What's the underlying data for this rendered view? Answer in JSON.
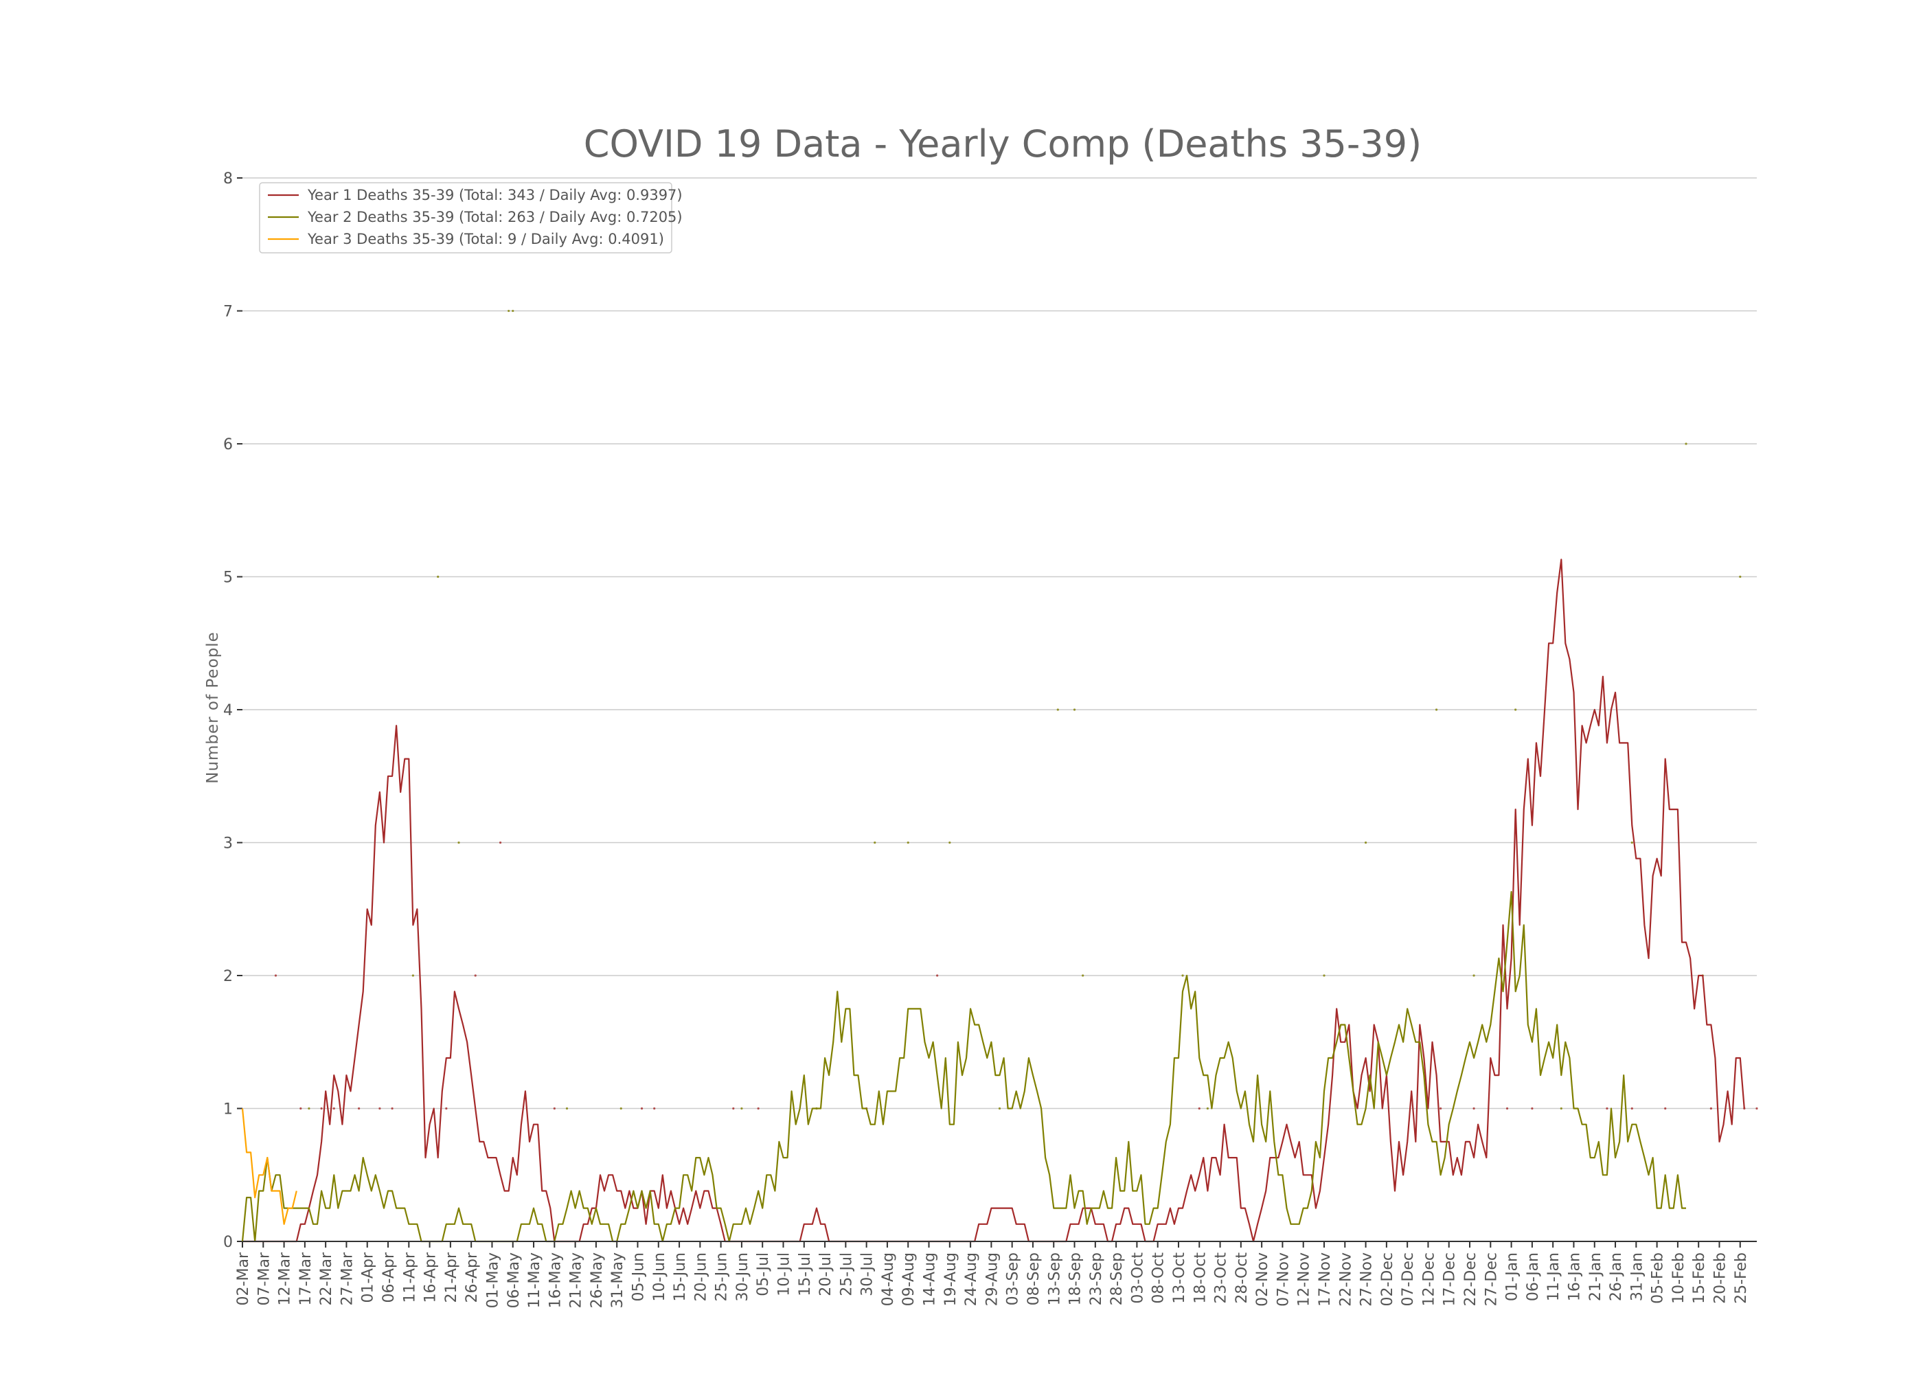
{
  "chart_data": {
    "type": "line",
    "title": "COVID 19 Data - Yearly Comp (Deaths 35-39)",
    "xlabel": "",
    "ylabel": "Number of People",
    "ylim": [
      0,
      8.3
    ],
    "yticks": [
      0,
      1,
      2,
      3,
      4,
      5,
      6,
      7,
      8
    ],
    "grid": true,
    "legend_position": "top-left",
    "xtick_labels": [
      "02-Mar",
      "07-Mar",
      "12-Mar",
      "17-Mar",
      "22-Mar",
      "27-Mar",
      "01-Apr",
      "06-Apr",
      "11-Apr",
      "16-Apr",
      "21-Apr",
      "26-Apr",
      "01-May",
      "06-May",
      "11-May",
      "16-May",
      "21-May",
      "26-May",
      "31-May",
      "05-Jun",
      "10-Jun",
      "15-Jun",
      "20-Jun",
      "25-Jun",
      "30-Jun",
      "05-Jul",
      "10-Jul",
      "15-Jul",
      "20-Jul",
      "25-Jul",
      "30-Jul",
      "04-Aug",
      "09-Aug",
      "14-Aug",
      "19-Aug",
      "24-Aug",
      "29-Aug",
      "03-Sep",
      "08-Sep",
      "13-Sep",
      "18-Sep",
      "23-Sep",
      "28-Sep",
      "03-Oct",
      "08-Oct",
      "13-Oct",
      "18-Oct",
      "23-Oct",
      "28-Oct",
      "02-Nov",
      "07-Nov",
      "12-Nov",
      "17-Nov",
      "22-Nov",
      "27-Nov",
      "02-Dec",
      "07-Dec",
      "12-Dec",
      "17-Dec",
      "22-Dec",
      "27-Dec",
      "01-Jan",
      "06-Jan",
      "11-Jan",
      "16-Jan",
      "21-Jan",
      "26-Jan",
      "31-Jan",
      "05-Feb",
      "10-Feb",
      "15-Feb",
      "20-Feb",
      "25-Feb"
    ],
    "series": [
      {
        "name": "Year 1 Deaths 35-39 (Total: 343 / Daily Avg: 0.9397)",
        "color": "#a52a2a",
        "start_day": 0,
        "values": [
          0,
          0,
          0,
          0,
          0,
          0,
          0,
          0,
          0,
          0,
          0,
          0,
          0,
          0,
          0.13,
          0.13,
          0.25,
          0.38,
          0.5,
          0.75,
          1.13,
          0.88,
          1.25,
          1.13,
          0.88,
          1.25,
          1.13,
          1.38,
          1.63,
          1.88,
          2.5,
          2.38,
          3.13,
          3.38,
          3.0,
          3.5,
          3.5,
          3.88,
          3.38,
          3.63,
          3.63,
          2.38,
          2.5,
          1.75,
          0.63,
          0.88,
          1.0,
          0.63,
          1.13,
          1.38,
          1.38,
          1.88,
          1.75,
          1.63,
          1.5,
          1.25,
          1.0,
          0.75,
          0.75,
          0.63,
          0.63,
          0.63,
          0.5,
          0.38,
          0.38,
          0.63,
          0.5,
          0.88,
          1.13,
          0.75,
          0.88,
          0.88,
          0.38,
          0.38,
          0.25,
          0,
          0,
          0,
          0,
          0,
          0,
          0,
          0.13,
          0.13,
          0.25,
          0.25,
          0.5,
          0.38,
          0.5,
          0.5,
          0.38,
          0.38,
          0.25,
          0.38,
          0.25,
          0.25,
          0.38,
          0.13,
          0.38,
          0.38,
          0.25,
          0.5,
          0.25,
          0.38,
          0.25,
          0.13,
          0.25,
          0.13,
          0.25,
          0.38,
          0.25,
          0.38,
          0.38,
          0.25,
          0.25,
          0.13,
          0,
          0,
          0,
          0,
          0,
          0,
          0,
          0,
          0,
          0,
          0,
          0,
          0,
          0,
          0,
          0,
          0,
          0,
          0,
          0.13,
          0.13,
          0.13,
          0.25,
          0.13,
          0.13,
          0,
          0,
          0,
          0,
          0,
          0,
          0,
          0,
          0,
          0,
          0,
          0,
          0,
          0,
          0,
          0,
          0,
          0,
          0,
          0,
          0,
          0,
          0,
          0,
          0,
          0,
          0,
          0,
          0,
          0,
          0,
          0,
          0,
          0,
          0,
          0,
          0.13,
          0.13,
          0.13,
          0.25,
          0.25,
          0.25,
          0.25,
          0.25,
          0.25,
          0.13,
          0.13,
          0.13,
          0,
          0,
          0,
          0,
          0,
          0,
          0,
          0,
          0,
          0,
          0.13,
          0.13,
          0.13,
          0.25,
          0.25,
          0.25,
          0.13,
          0.13,
          0.13,
          0,
          0,
          0.13,
          0.13,
          0.25,
          0.25,
          0.13,
          0.13,
          0.13,
          0,
          0,
          0,
          0.13,
          0.13,
          0.13,
          0.25,
          0.13,
          0.25,
          0.25,
          0.38,
          0.5,
          0.38,
          0.5,
          0.63,
          0.38,
          0.63,
          0.63,
          0.5,
          0.88,
          0.63,
          0.63,
          0.63,
          0.25,
          0.25,
          0.13,
          0,
          0.13,
          0.25,
          0.38,
          0.63,
          0.63,
          0.63,
          0.75,
          0.88,
          0.75,
          0.63,
          0.75,
          0.5,
          0.5,
          0.5,
          0.25,
          0.38,
          0.63,
          0.88,
          1.25,
          1.75,
          1.5,
          1.5,
          1.63,
          1.13,
          1.0,
          1.25,
          1.38,
          1.13,
          1.63,
          1.5,
          1.0,
          1.25,
          0.75,
          0.38,
          0.75,
          0.5,
          0.75,
          1.13,
          0.75,
          1.63,
          1.38,
          1.0,
          1.5,
          1.25,
          0.75,
          0.75,
          0.75,
          0.5,
          0.63,
          0.5,
          0.75,
          0.75,
          0.63,
          0.88,
          0.75,
          0.63,
          1.38,
          1.25,
          1.25,
          2.38,
          1.75,
          2.13,
          3.25,
          2.38,
          3.25,
          3.63,
          3.13,
          3.75,
          3.5,
          4.0,
          4.5,
          4.5,
          4.88,
          5.13,
          4.5,
          4.38,
          4.13,
          3.25,
          3.88,
          3.75,
          3.88,
          4.0,
          3.88,
          4.25,
          3.75,
          4.0,
          4.13,
          3.75,
          3.75,
          3.75,
          3.13,
          2.88,
          2.88,
          2.38,
          2.13,
          2.75,
          2.88,
          2.75,
          3.63,
          3.25,
          3.25,
          3.25,
          2.25,
          2.25,
          2.13,
          1.75,
          2.0,
          2.0,
          1.63,
          1.63,
          1.38,
          0.75,
          0.88,
          1.13,
          0.88,
          1.38,
          1.38,
          1.0
        ]
      },
      {
        "name": "Year 2 Deaths 35-39 (Total: 263 / Daily Avg: 0.7205)",
        "color": "#808000",
        "start_day": 0,
        "values": [
          0,
          0.33,
          0.33,
          0,
          0.38,
          0.38,
          0.63,
          0.38,
          0.5,
          0.5,
          0.25,
          0.25,
          0.25,
          0.25,
          0.25,
          0.25,
          0.25,
          0.13,
          0.13,
          0.38,
          0.25,
          0.25,
          0.5,
          0.25,
          0.38,
          0.38,
          0.38,
          0.5,
          0.38,
          0.63,
          0.5,
          0.38,
          0.5,
          0.38,
          0.25,
          0.38,
          0.38,
          0.25,
          0.25,
          0.25,
          0.13,
          0.13,
          0.13,
          0,
          0,
          0,
          0,
          0,
          0,
          0.13,
          0.13,
          0.13,
          0.25,
          0.13,
          0.13,
          0.13,
          0,
          0,
          0,
          0,
          0,
          0,
          0,
          0,
          0,
          0,
          0,
          0.13,
          0.13,
          0.13,
          0.25,
          0.13,
          0.13,
          0,
          0,
          0,
          0.13,
          0.13,
          0.25,
          0.38,
          0.25,
          0.38,
          0.25,
          0.25,
          0.13,
          0.25,
          0.13,
          0.13,
          0.13,
          0,
          0,
          0.13,
          0.13,
          0.25,
          0.38,
          0.25,
          0.38,
          0.25,
          0.38,
          0.13,
          0.13,
          0,
          0.13,
          0.13,
          0.25,
          0.25,
          0.5,
          0.5,
          0.38,
          0.63,
          0.63,
          0.5,
          0.63,
          0.5,
          0.25,
          0.25,
          0.13,
          0,
          0.13,
          0.13,
          0.13,
          0.25,
          0.13,
          0.25,
          0.38,
          0.25,
          0.5,
          0.5,
          0.38,
          0.75,
          0.63,
          0.63,
          1.13,
          0.88,
          1.0,
          1.25,
          0.88,
          1.0,
          1.0,
          1.0,
          1.38,
          1.25,
          1.5,
          1.88,
          1.5,
          1.75,
          1.75,
          1.25,
          1.25,
          1.0,
          1.0,
          0.88,
          0.88,
          1.13,
          0.88,
          1.13,
          1.13,
          1.13,
          1.38,
          1.38,
          1.75,
          1.75,
          1.75,
          1.75,
          1.5,
          1.38,
          1.5,
          1.25,
          1.0,
          1.38,
          0.88,
          0.88,
          1.5,
          1.25,
          1.38,
          1.75,
          1.63,
          1.63,
          1.5,
          1.38,
          1.5,
          1.25,
          1.25,
          1.38,
          1.0,
          1.0,
          1.13,
          1.0,
          1.13,
          1.38,
          1.25,
          1.13,
          1.0,
          0.63,
          0.5,
          0.25,
          0.25,
          0.25,
          0.25,
          0.5,
          0.25,
          0.38,
          0.38,
          0.13,
          0.25,
          0.25,
          0.25,
          0.38,
          0.25,
          0.25,
          0.63,
          0.38,
          0.38,
          0.75,
          0.38,
          0.38,
          0.5,
          0.13,
          0.13,
          0.25,
          0.25,
          0.5,
          0.75,
          0.88,
          1.38,
          1.38,
          1.88,
          2.0,
          1.75,
          1.88,
          1.38,
          1.25,
          1.25,
          1.0,
          1.25,
          1.38,
          1.38,
          1.5,
          1.38,
          1.13,
          1.0,
          1.13,
          0.88,
          0.75,
          1.25,
          0.88,
          0.75,
          1.13,
          0.75,
          0.5,
          0.5,
          0.25,
          0.13,
          0.13,
          0.13,
          0.25,
          0.25,
          0.38,
          0.75,
          0.63,
          1.13,
          1.38,
          1.38,
          1.5,
          1.63,
          1.63,
          1.38,
          1.13,
          0.88,
          0.88,
          1.0,
          1.25,
          1.0,
          1.5,
          1.38,
          1.25,
          1.38,
          1.5,
          1.63,
          1.5,
          1.75,
          1.63,
          1.5,
          1.5,
          1.25,
          0.88,
          0.75,
          0.75,
          0.5,
          0.63,
          0.88,
          1.0,
          1.13,
          1.25,
          1.38,
          1.5,
          1.38,
          1.5,
          1.63,
          1.5,
          1.63,
          1.88,
          2.13,
          1.88,
          2.25,
          2.63,
          1.88,
          2.0,
          2.38,
          1.63,
          1.5,
          1.75,
          1.25,
          1.38,
          1.5,
          1.38,
          1.63,
          1.25,
          1.5,
          1.38,
          1.0,
          1.0,
          0.88,
          0.88,
          0.63,
          0.63,
          0.75,
          0.5,
          0.5,
          1.0,
          0.63,
          0.75,
          1.25,
          0.75,
          0.88,
          0.88,
          0.75,
          0.63,
          0.5,
          0.63,
          0.25,
          0.25,
          0.5,
          0.25,
          0.25,
          0.5,
          0.25,
          0.25
        ]
      },
      {
        "name": "Year 3 Deaths 35-39 (Total: 9 / Daily Avg: 0.4091)",
        "color": "#ffa500",
        "start_day": 0,
        "values": [
          1.0,
          0.67,
          0.67,
          0.33,
          0.5,
          0.5,
          0.63,
          0.38,
          0.38,
          0.38,
          0.13,
          0.25,
          0.25,
          0.38
        ]
      }
    ],
    "markers": [
      {
        "series": 0,
        "points": [
          [
            8,
            2
          ],
          [
            14,
            1
          ],
          [
            19,
            1
          ],
          [
            22,
            1
          ],
          [
            28,
            1
          ],
          [
            33,
            1
          ],
          [
            36,
            1
          ],
          [
            49,
            1
          ],
          [
            56,
            2
          ],
          [
            62,
            3
          ],
          [
            75,
            1
          ],
          [
            96,
            1
          ],
          [
            99,
            1
          ],
          [
            118,
            1
          ],
          [
            124,
            1
          ],
          [
            150,
            1
          ],
          [
            167,
            2
          ],
          [
            230,
            1
          ],
          [
            288,
            1
          ],
          [
            296,
            1
          ],
          [
            304,
            1
          ],
          [
            310,
            1
          ],
          [
            328,
            1
          ],
          [
            334,
            1
          ],
          [
            342,
            1
          ],
          [
            353,
            1
          ],
          [
            361,
            1
          ],
          [
            364,
            1
          ]
        ]
      },
      {
        "series": 1,
        "points": [
          [
            16,
            1
          ],
          [
            41,
            2
          ],
          [
            47,
            5
          ],
          [
            52,
            3
          ],
          [
            64,
            7
          ],
          [
            65,
            7
          ],
          [
            78,
            1
          ],
          [
            91,
            1
          ],
          [
            120,
            1
          ],
          [
            138,
            1
          ],
          [
            152,
            3
          ],
          [
            160,
            3
          ],
          [
            170,
            3
          ],
          [
            182,
            1
          ],
          [
            196,
            4
          ],
          [
            200,
            4
          ],
          [
            202,
            2
          ],
          [
            226,
            2
          ],
          [
            232,
            1
          ],
          [
            260,
            2
          ],
          [
            270,
            3
          ],
          [
            287,
            4
          ],
          [
            296,
            2
          ],
          [
            306,
            4
          ],
          [
            317,
            1
          ],
          [
            334,
            3
          ],
          [
            347,
            6
          ],
          [
            351,
            2
          ],
          [
            360,
            5
          ]
        ]
      }
    ]
  },
  "legend": {
    "entries": [
      {
        "label": "Year 1 Deaths 35-39 (Total: 343 / Daily Avg: 0.9397)",
        "color": "#a52a2a"
      },
      {
        "label": "Year 2 Deaths 35-39 (Total: 263 / Daily Avg: 0.7205)",
        "color": "#808000"
      },
      {
        "label": "Year 3 Deaths 35-39 (Total: 9 / Daily Avg: 0.4091)",
        "color": "#ffa500"
      }
    ]
  }
}
